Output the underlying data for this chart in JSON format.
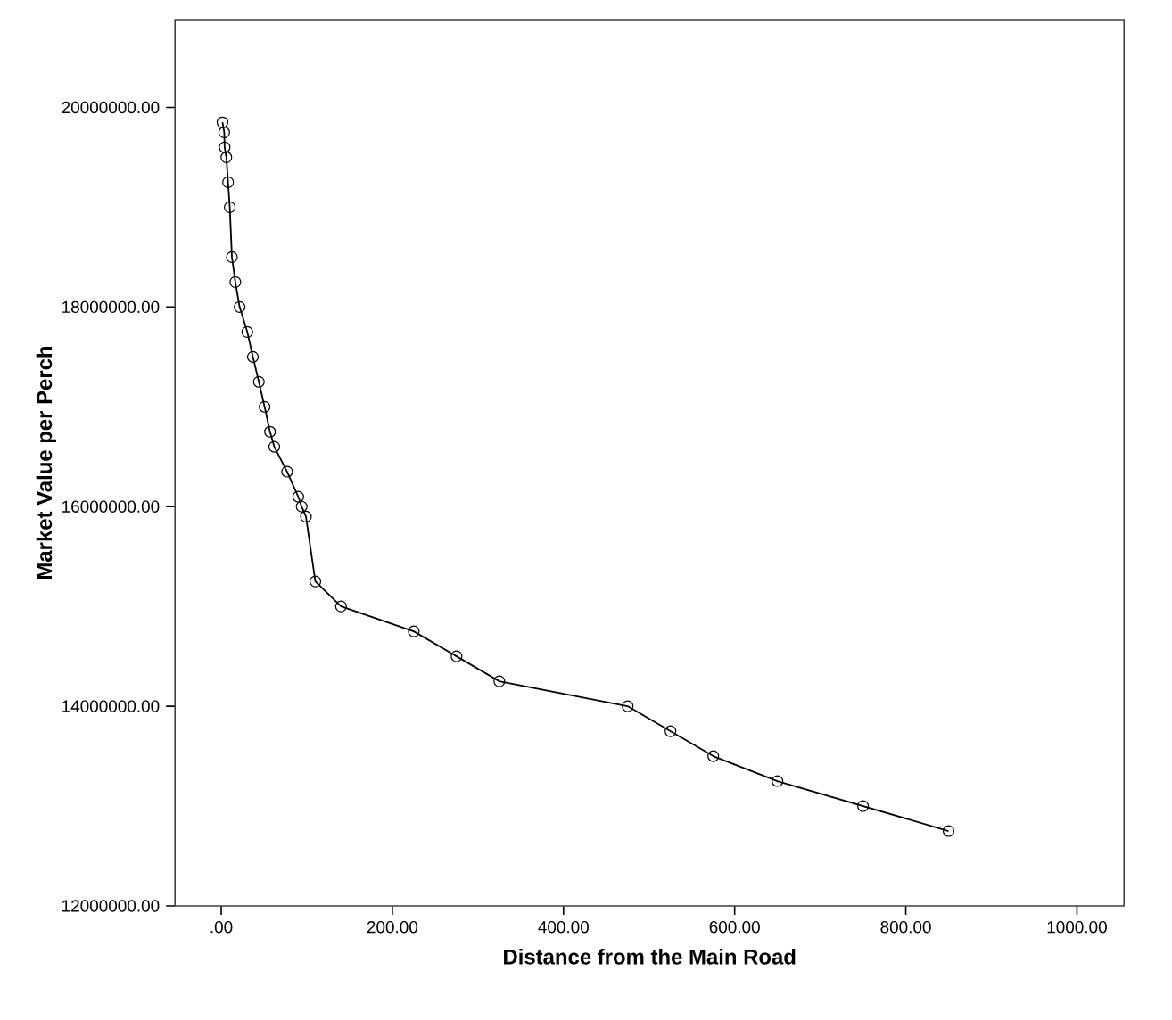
{
  "chart_data": {
    "type": "line",
    "xlabel": "Distance from the Main Road",
    "ylabel": "Market Value per Perch",
    "x": [
      1.5,
      3.5,
      4,
      6,
      8,
      10,
      12.5,
      16.5,
      21.5,
      30.5,
      37,
      44,
      50.7,
      57,
      62,
      77,
      90,
      94,
      99,
      110,
      140,
      225,
      275,
      325,
      475,
      525,
      575,
      650,
      750,
      850
    ],
    "series": [
      {
        "color": "#000000",
        "values": [
          19850000,
          19750000,
          19600000,
          19500000,
          19250000,
          19000000,
          18500000,
          18250000,
          18000000,
          17750000,
          17500000,
          17250000,
          17000000,
          16750000,
          16600000,
          16350000,
          16100000,
          16000000,
          15900000,
          15250000,
          15000000,
          14750000,
          14500000,
          14250000,
          14000000,
          13750000,
          13500000,
          13250000,
          13000000,
          12750000
        ]
      }
    ],
    "xlim": [
      -54,
      1055
    ],
    "ylim": [
      12000000,
      20880000
    ],
    "xticks": [
      {
        "value": 0,
        "label": ".00"
      },
      {
        "value": 200,
        "label": "200.00"
      },
      {
        "value": 400,
        "label": "400.00"
      },
      {
        "value": 600,
        "label": "600.00"
      },
      {
        "value": 800,
        "label": "800.00"
      },
      {
        "value": 1000,
        "label": "1000.00"
      }
    ],
    "yticks": [
      {
        "value": 12000000,
        "label": "12000000.00"
      },
      {
        "value": 14000000,
        "label": "14000000.00"
      },
      {
        "value": 16000000,
        "label": "16000000.00"
      },
      {
        "value": 18000000,
        "label": "18000000.00"
      },
      {
        "value": 20000000,
        "label": "20000000.00"
      }
    ],
    "marker": "circle",
    "line_style": "solid",
    "grid": false
  }
}
